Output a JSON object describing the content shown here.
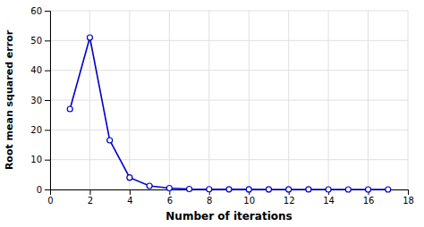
{
  "chart_data": {
    "type": "line",
    "x": [
      1,
      2,
      3,
      4,
      5,
      6,
      7,
      8,
      9,
      10,
      11,
      12,
      13,
      14,
      15,
      16,
      17
    ],
    "values": [
      27,
      51,
      16.5,
      4.0,
      1.2,
      0.45,
      0.15,
      0.07,
      0.04,
      0.025,
      0.018,
      0.013,
      0.009,
      0.007,
      0.005,
      0.004,
      0.003
    ],
    "xlabel": "Number of iterations",
    "ylabel": "Root mean squared error",
    "xlim": [
      0,
      18
    ],
    "ylim": [
      0,
      60
    ],
    "xticks": [
      0,
      2,
      4,
      6,
      8,
      10,
      12,
      14,
      16,
      18
    ],
    "yticks": [
      0,
      10,
      20,
      30,
      40,
      50,
      60
    ],
    "grid": true,
    "color": "#0000CC",
    "marker": "circle"
  }
}
